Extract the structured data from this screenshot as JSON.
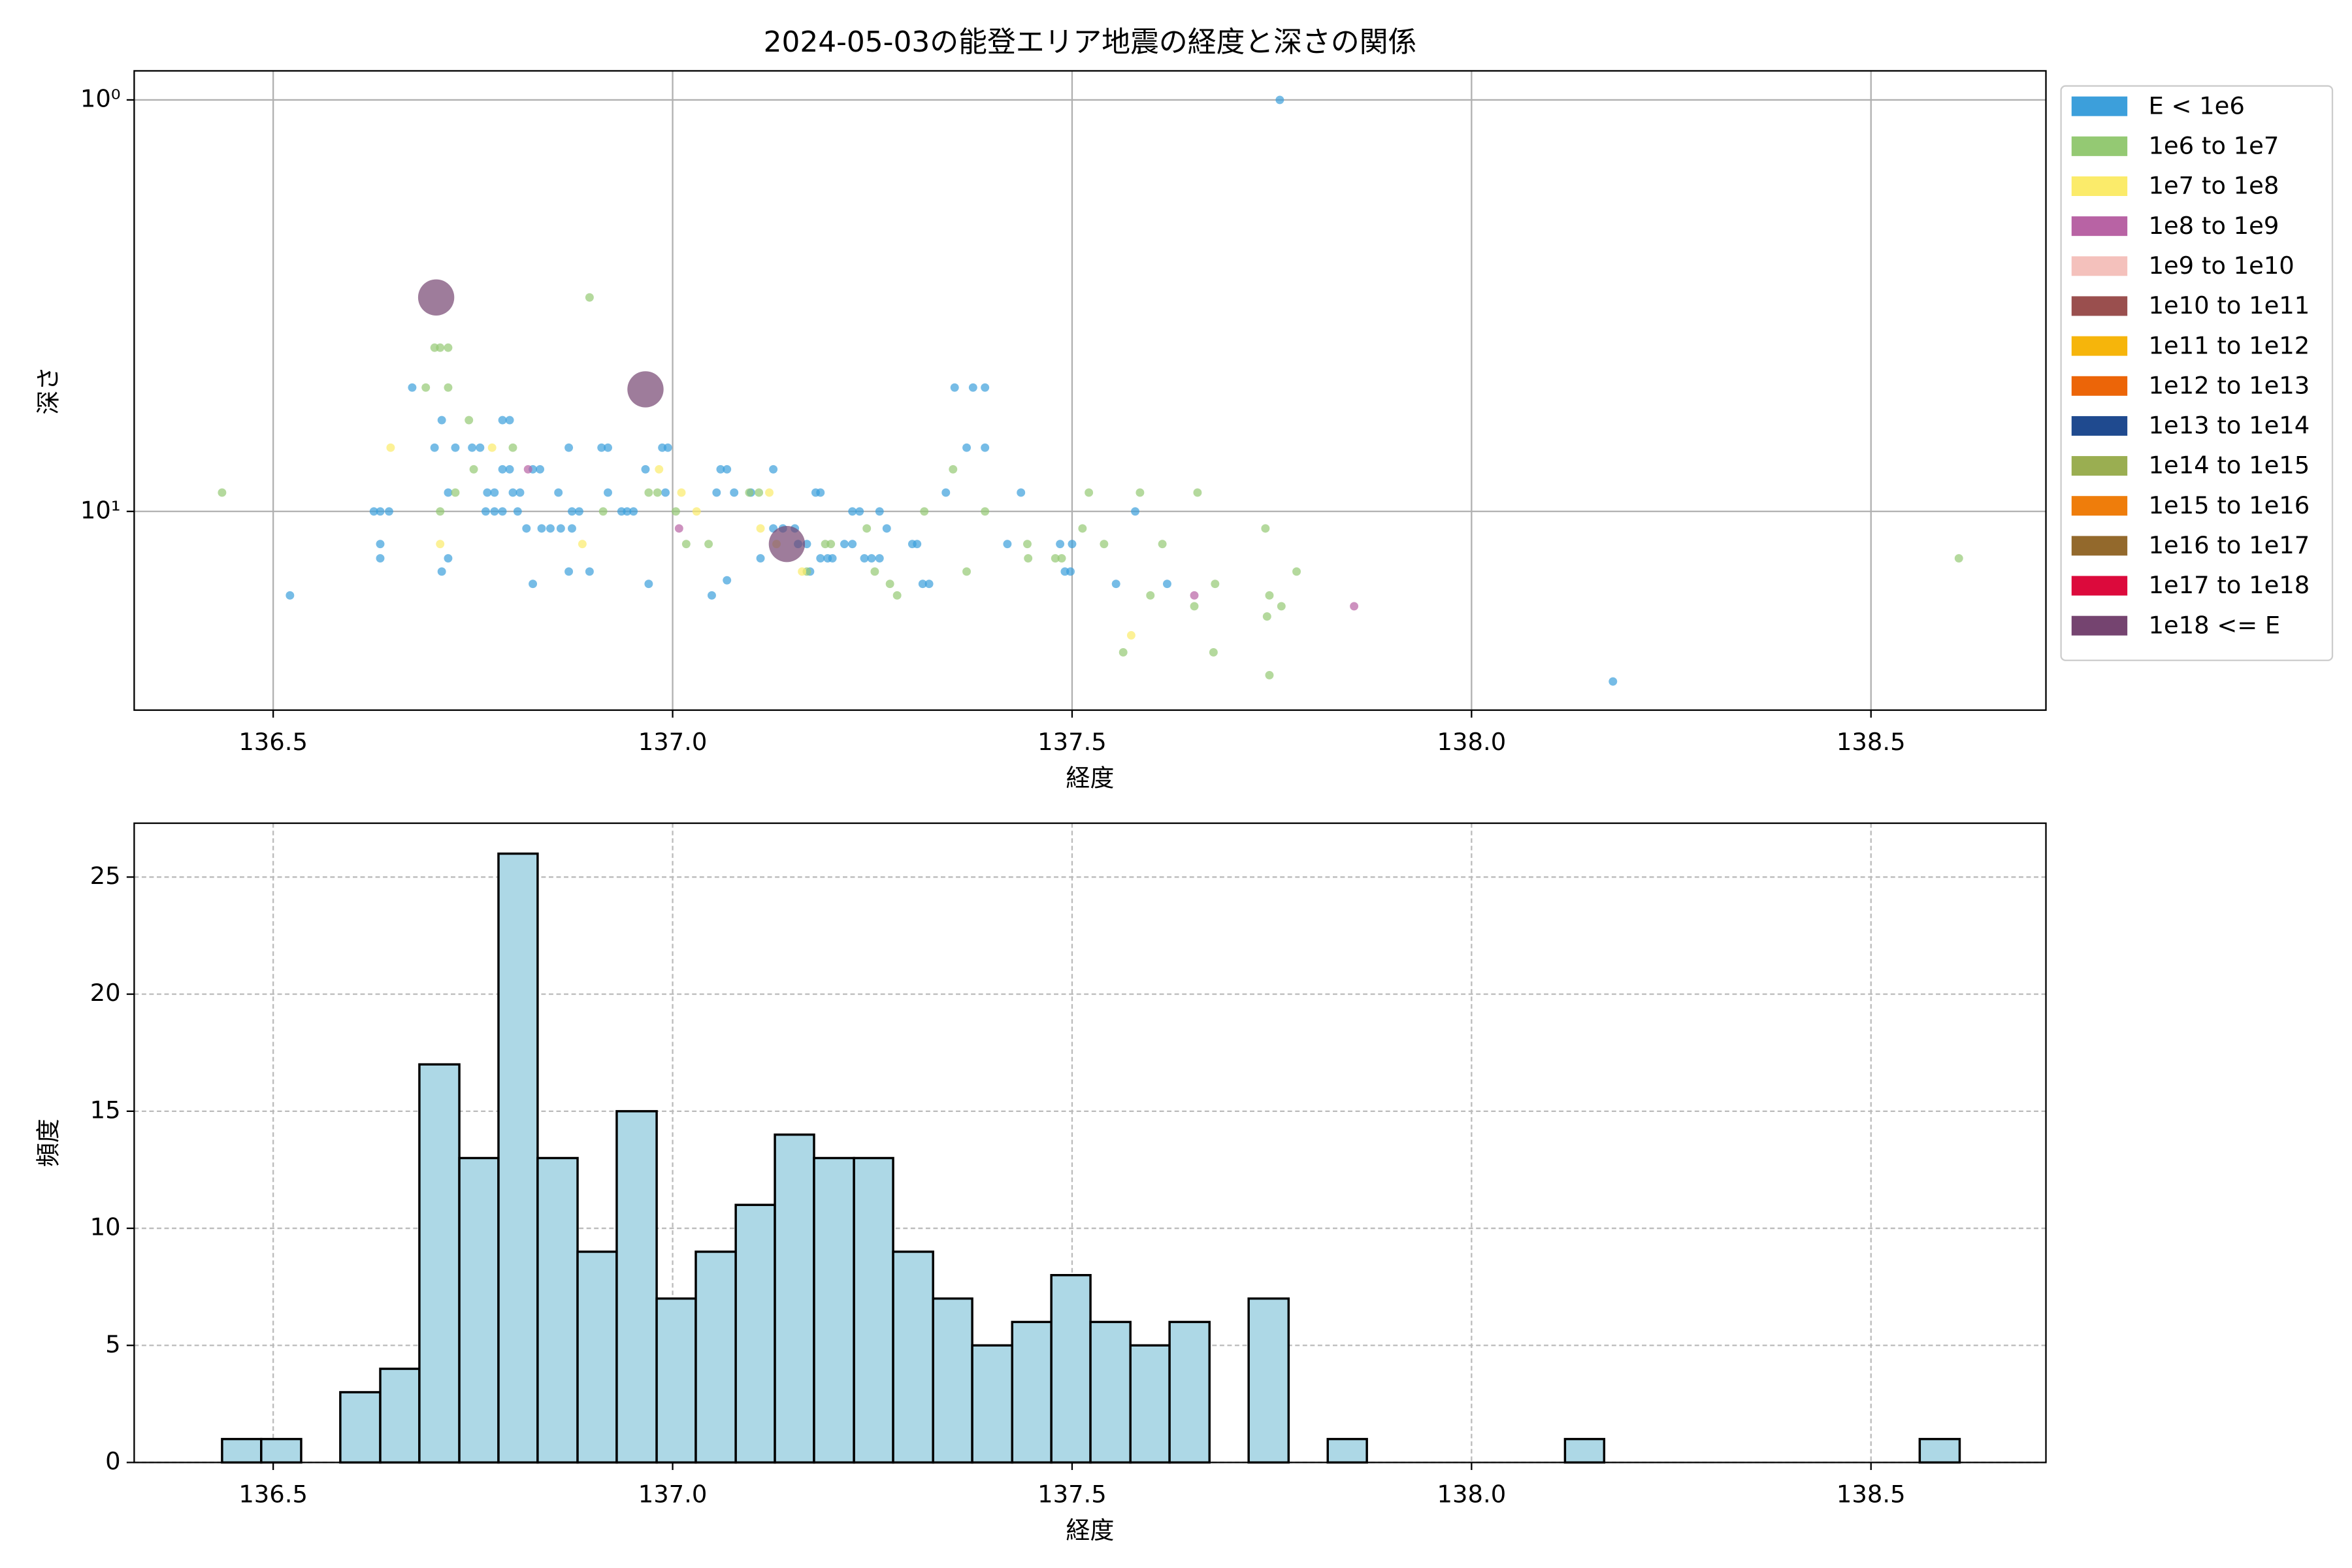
{
  "chart_data": [
    {
      "type": "scatter",
      "title": "2024-05-03の能登エリア地震の経度と深さの関係",
      "xlabel": "経度",
      "ylabel": "深さ",
      "xlim": [
        136.326,
        138.719
      ],
      "ylim": [
        0.85,
        30.4
      ],
      "y_log": true,
      "y_inverted": true,
      "grid": true,
      "grid_style": "solid",
      "legend": "outside-right",
      "alpha": 0.7,
      "xticks": [
        {
          "value": 136.5,
          "label": "136.5"
        },
        {
          "value": 137.0,
          "label": "137.0"
        },
        {
          "value": 137.5,
          "label": "137.5"
        },
        {
          "value": 138.0,
          "label": "138.0"
        },
        {
          "value": 138.5,
          "label": "138.5"
        }
      ],
      "yticks": [
        {
          "value": 1,
          "label": "10⁰"
        },
        {
          "value": 10,
          "label": "10¹"
        }
      ],
      "series": [
        {
          "name": "E < 1e6",
          "color": "#3c9fdb",
          "marker_size": "small",
          "x": [
            137.76,
            138.177,
            136.521,
            136.626,
            136.634,
            136.645,
            136.634,
            136.634,
            136.674,
            136.702,
            136.711,
            136.711,
            136.719,
            136.719,
            136.728,
            136.749,
            136.759,
            136.768,
            136.777,
            136.787,
            136.796,
            136.787,
            136.796,
            136.766,
            136.777,
            136.787,
            136.806,
            136.8,
            136.809,
            136.817,
            136.825,
            136.834,
            136.825,
            136.836,
            136.847,
            136.86,
            136.857,
            136.874,
            136.883,
            136.87,
            136.874,
            136.87,
            136.896,
            136.911,
            136.919,
            136.919,
            136.936,
            136.943,
            136.951,
            136.966,
            136.97,
            136.987,
            136.994,
            136.991,
            137.049,
            137.055,
            137.06,
            137.068,
            137.077,
            137.068,
            137.098,
            137.11,
            137.126,
            137.126,
            137.138,
            137.153,
            137.157,
            137.168,
            137.172,
            137.179,
            137.185,
            137.185,
            137.194,
            137.2,
            137.215,
            137.225,
            137.225,
            137.234,
            137.24,
            137.249,
            137.259,
            137.259,
            137.268,
            137.3,
            137.306,
            137.313,
            137.321,
            137.342,
            137.353,
            137.376,
            137.391,
            137.368,
            137.391,
            137.419,
            137.436,
            137.485,
            137.5,
            137.491,
            137.498,
            137.579,
            137.555,
            137.619
          ],
          "y": [
            1.0,
            25.9,
            16,
            10,
            10,
            10,
            12,
            13,
            5,
            7,
            6,
            14,
            13,
            9,
            7,
            7,
            7,
            9,
            9,
            6,
            6,
            7.9,
            7.9,
            10,
            10,
            10,
            10,
            9,
            9,
            11,
            7.9,
            7.9,
            15,
            11,
            11,
            11,
            9,
            10,
            10,
            7,
            11,
            14,
            14,
            7,
            7,
            9,
            10,
            10,
            10,
            7.9,
            15,
            7,
            7,
            9,
            16,
            9,
            7.9,
            7.9,
            9,
            14.7,
            9,
            13,
            7.9,
            11,
            11,
            11,
            12,
            12,
            14,
            9,
            9,
            13,
            13,
            13,
            12,
            12,
            10,
            10,
            13,
            13,
            13,
            10,
            11,
            12,
            12,
            15,
            15,
            9,
            5,
            5,
            5,
            7,
            7,
            12,
            9,
            12,
            12,
            14,
            14,
            10,
            15,
            15
          ]
        },
        {
          "name": "1e6 to 1e7",
          "color": "#94c973",
          "marker_size": "small",
          "x": [
            136.436,
            138.61,
            136.896,
            136.702,
            136.709,
            136.719,
            136.691,
            136.719,
            136.745,
            136.751,
            136.709,
            136.728,
            136.8,
            136.913,
            136.97,
            136.981,
            137.004,
            137.017,
            137.045,
            137.096,
            137.108,
            137.168,
            137.191,
            137.198,
            137.243,
            137.253,
            137.272,
            137.281,
            137.315,
            137.351,
            137.368,
            137.391,
            137.444,
            137.445,
            137.479,
            137.487,
            137.521,
            137.513,
            137.54,
            137.585,
            137.598,
            137.613,
            137.653,
            137.657,
            137.679,
            137.677,
            137.742,
            137.747,
            137.762,
            137.744,
            137.747,
            137.781,
            137.564
          ],
          "y": [
            9,
            13,
            3.02,
            4,
            4,
            4,
            5,
            5,
            6,
            7.9,
            10,
            9,
            7,
            10,
            9,
            9,
            10,
            12,
            12,
            9,
            9,
            14,
            12,
            12,
            11,
            14,
            15,
            16,
            10,
            7.9,
            14,
            10,
            12,
            13,
            13,
            13,
            9,
            11,
            12,
            9,
            16,
            12,
            17,
            9,
            15,
            22,
            11,
            16,
            17,
            18,
            25,
            14,
            22
          ]
        },
        {
          "name": "1e7 to 1e8",
          "color": "#fbeb6a",
          "marker_size": "small",
          "x": [
            136.647,
            136.709,
            136.774,
            136.887,
            136.983,
            137.011,
            137.03,
            137.11,
            137.121,
            137.13,
            137.162,
            137.574
          ],
          "y": [
            7,
            12,
            7,
            12,
            7.9,
            9,
            10,
            11,
            9,
            12,
            14,
            20
          ]
        },
        {
          "name": "1e8 to 1e9",
          "color": "#b863a4",
          "marker_size": "small",
          "x": [
            137.008,
            136.819,
            137.653,
            137.853
          ],
          "y": [
            11,
            7.9,
            16,
            17
          ]
        },
        {
          "name": "1e9 to 1e10",
          "color": "#f4c1bc",
          "marker_size": "small",
          "x": [],
          "y": []
        },
        {
          "name": "1e10 to 1e11",
          "color": "#9a4f4e",
          "marker_size": "small",
          "x": [],
          "y": []
        },
        {
          "name": "1e11 to 1e12",
          "color": "#f6b50b",
          "marker_size": "small",
          "x": [],
          "y": []
        },
        {
          "name": "1e12 to 1e13",
          "color": "#ec6508",
          "marker_size": "small",
          "x": [],
          "y": []
        },
        {
          "name": "1e13 to 1e14",
          "color": "#1f4a8f",
          "marker_size": "small",
          "x": [],
          "y": []
        },
        {
          "name": "1e14 to 1e15",
          "color": "#9aae51",
          "marker_size": "small",
          "x": [],
          "y": []
        },
        {
          "name": "1e15 to 1e16",
          "color": "#ef7d0b",
          "marker_size": "small",
          "x": [],
          "y": []
        },
        {
          "name": "1e16 to 1e17",
          "color": "#93692c",
          "marker_size": "small",
          "x": [],
          "y": []
        },
        {
          "name": "1e17 to 1e18",
          "color": "#dc0a3c",
          "marker_size": "small",
          "x": [],
          "y": []
        },
        {
          "name": "1e18 <= E",
          "color": "#754470",
          "marker_size": "large",
          "x": [
            136.704,
            136.966,
            137.143
          ],
          "y": [
            3.02,
            5.05,
            12
          ]
        }
      ]
    },
    {
      "type": "histogram",
      "xlabel": "経度",
      "ylabel": "頻度",
      "color": "#add8e6",
      "edgecolor": "#000000",
      "xlim": [
        136.326,
        138.719
      ],
      "ylim": [
        0,
        27.3
      ],
      "grid": true,
      "grid_style": "dashed",
      "xticks": [
        {
          "value": 136.5,
          "label": "136.5"
        },
        {
          "value": 137.0,
          "label": "137.0"
        },
        {
          "value": 137.5,
          "label": "137.5"
        },
        {
          "value": 138.0,
          "label": "138.0"
        },
        {
          "value": 138.5,
          "label": "138.5"
        }
      ],
      "yticks": [
        0,
        5,
        10,
        15,
        20,
        25
      ],
      "bins": [
        136.436,
        136.485,
        136.535,
        136.584,
        136.634,
        136.683,
        136.733,
        136.782,
        136.831,
        136.881,
        136.93,
        136.98,
        137.029,
        137.079,
        137.128,
        137.177,
        137.227,
        137.276,
        137.326,
        137.375,
        137.425,
        137.474,
        137.523,
        137.573,
        137.622,
        137.672,
        137.721,
        137.771,
        137.82,
        137.869,
        137.919,
        137.968,
        138.018,
        138.067,
        138.117,
        138.166,
        138.215,
        138.265,
        138.314,
        138.364,
        138.413,
        138.463,
        138.512,
        138.561,
        138.611
      ],
      "values": [
        1,
        1,
        0,
        3,
        4,
        17,
        13,
        26,
        13,
        9,
        15,
        7,
        9,
        11,
        14,
        13,
        13,
        9,
        7,
        5,
        6,
        8,
        6,
        5,
        6,
        0,
        7,
        0,
        1,
        0,
        0,
        0,
        0,
        0,
        1,
        0,
        0,
        0,
        0,
        0,
        0,
        0,
        0,
        1
      ]
    }
  ]
}
